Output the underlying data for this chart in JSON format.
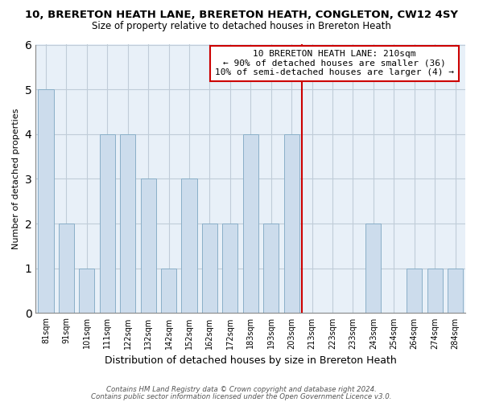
{
  "title": "10, BRERETON HEATH LANE, BRERETON HEATH, CONGLETON, CW12 4SY",
  "subtitle": "Size of property relative to detached houses in Brereton Heath",
  "xlabel": "Distribution of detached houses by size in Brereton Heath",
  "ylabel": "Number of detached properties",
  "bar_color": "#ccdcec",
  "bar_edge_color": "#8aafc8",
  "categories": [
    "81sqm",
    "91sqm",
    "101sqm",
    "111sqm",
    "122sqm",
    "132sqm",
    "142sqm",
    "152sqm",
    "162sqm",
    "172sqm",
    "183sqm",
    "193sqm",
    "203sqm",
    "213sqm",
    "223sqm",
    "233sqm",
    "243sqm",
    "254sqm",
    "264sqm",
    "274sqm",
    "284sqm"
  ],
  "values": [
    5,
    2,
    1,
    4,
    4,
    3,
    1,
    3,
    2,
    2,
    4,
    2,
    4,
    0,
    0,
    0,
    2,
    0,
    1,
    1,
    1
  ],
  "marker_line_color": "#cc0000",
  "annotation_line1": "10 BRERETON HEATH LANE: 210sqm",
  "annotation_line2": "← 90% of detached houses are smaller (36)",
  "annotation_line3": "10% of semi-detached houses are larger (4) →",
  "ylim": [
    0,
    6
  ],
  "yticks": [
    0,
    1,
    2,
    3,
    4,
    5,
    6
  ],
  "plot_bg_color": "#e8f0f8",
  "background_color": "#ffffff",
  "grid_color": "#c0ccd8",
  "footer1": "Contains HM Land Registry data © Crown copyright and database right 2024.",
  "footer2": "Contains public sector information licensed under the Open Government Licence v3.0.",
  "marker_category_index": 13
}
